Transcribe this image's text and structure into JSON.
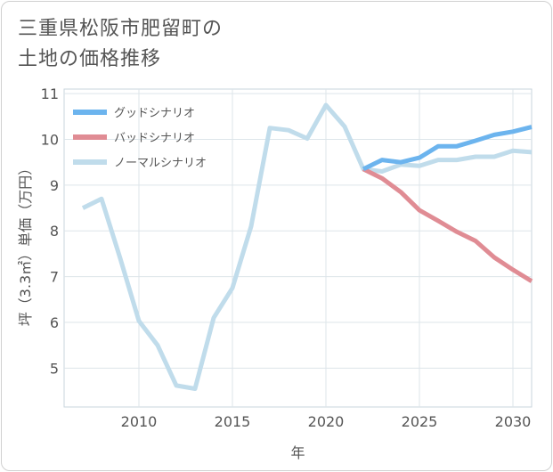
{
  "title_lines": [
    "三重県松阪市肥留町の",
    "土地の価格推移"
  ],
  "chart_data": {
    "type": "line",
    "xlabel": "年",
    "ylabel": "坪（3.3㎡）単価（万円）",
    "xlim": [
      2006,
      2031
    ],
    "ylim": [
      4.15,
      11.1
    ],
    "x_ticks": [
      2010,
      2015,
      2020,
      2025,
      2030
    ],
    "y_ticks": [
      5,
      6,
      7,
      8,
      9,
      10,
      11
    ],
    "grid": true,
    "legend_position": "top-left",
    "series": [
      {
        "name": "グッドシナリオ",
        "color": "#6cb4ee",
        "x": [
          2022,
          2023,
          2024,
          2025,
          2026,
          2027,
          2028,
          2029,
          2030,
          2031
        ],
        "y": [
          9.35,
          9.55,
          9.5,
          9.6,
          9.85,
          9.85,
          9.97,
          10.1,
          10.17,
          10.27
        ]
      },
      {
        "name": "バッドシナリオ",
        "color": "#e08c94",
        "x": [
          2022,
          2023,
          2024,
          2025,
          2026,
          2027,
          2028,
          2029,
          2030,
          2031
        ],
        "y": [
          9.35,
          9.15,
          8.85,
          8.45,
          8.22,
          7.98,
          7.78,
          7.42,
          7.15,
          6.9
        ]
      },
      {
        "name": "ノーマルシナリオ",
        "color": "#c0dceb",
        "x": [
          2007,
          2008,
          2009,
          2010,
          2011,
          2012,
          2013,
          2014,
          2015,
          2016,
          2017,
          2018,
          2019,
          2020,
          2021,
          2022,
          2023,
          2024,
          2025,
          2026,
          2027,
          2028,
          2029,
          2030,
          2031
        ],
        "y": [
          8.5,
          8.7,
          7.4,
          6.03,
          5.5,
          4.62,
          4.55,
          6.1,
          6.75,
          8.1,
          10.25,
          10.2,
          10.02,
          10.75,
          10.28,
          9.35,
          9.3,
          9.45,
          9.42,
          9.55,
          9.55,
          9.62,
          9.62,
          9.75,
          9.72
        ]
      }
    ]
  }
}
